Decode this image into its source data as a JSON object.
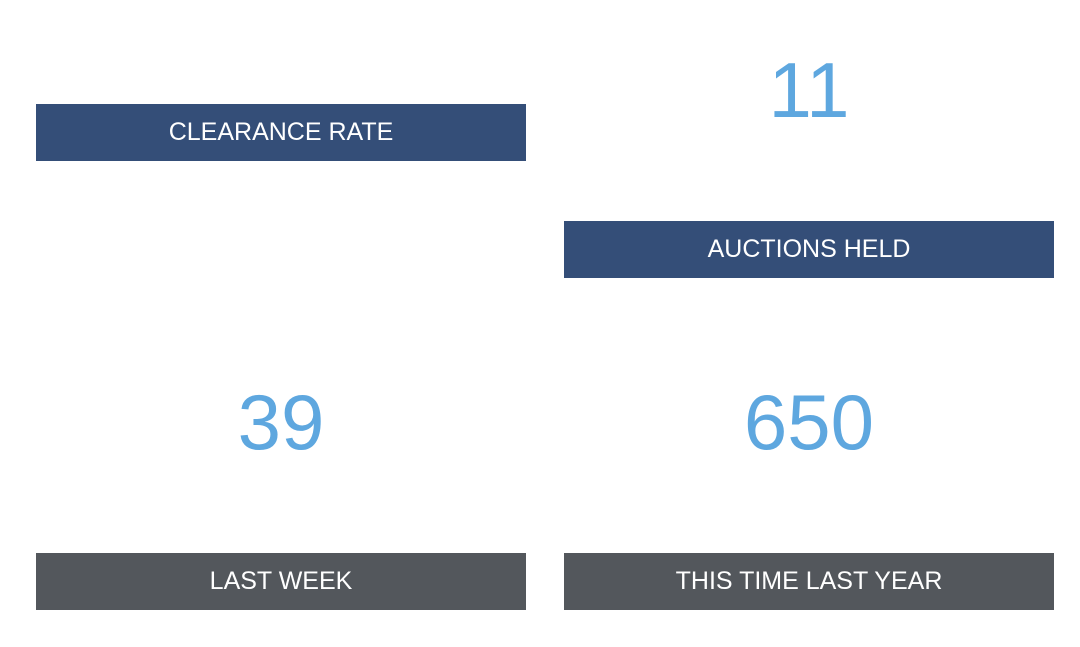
{
  "panels": [
    {
      "label": "CLEARANCE RATE"
    },
    {
      "label": "AUCTIONS HELD",
      "value": "11"
    },
    {
      "label": "LAST WEEK",
      "value": "39"
    },
    {
      "label": "THIS TIME LAST YEAR",
      "value": "650"
    }
  ]
}
